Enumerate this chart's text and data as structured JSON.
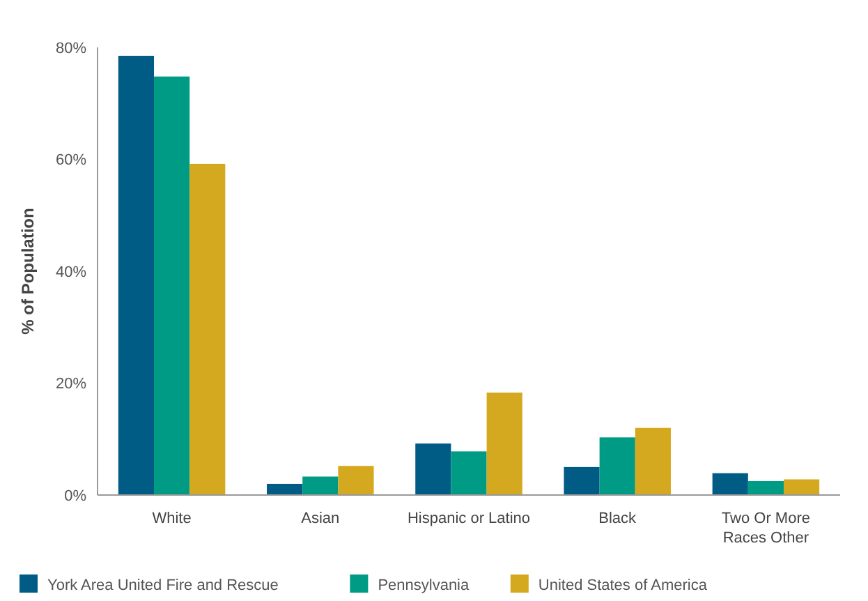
{
  "chart_data": {
    "type": "bar",
    "ylabel": "% of Population",
    "categories": [
      "White",
      "Asian",
      "Hispanic or Latino",
      "Black",
      "Two Or More Races Other"
    ],
    "series": [
      {
        "name": "York Area United Fire and Rescue",
        "color": "#005b85",
        "values": [
          78.5,
          2,
          9.2,
          5,
          3.9
        ]
      },
      {
        "name": "Pennsylvania",
        "color": "#009b84",
        "values": [
          74.8,
          3.3,
          7.8,
          10.3,
          2.5
        ]
      },
      {
        "name": "United States of America",
        "color": "#d4a91f",
        "values": [
          59.2,
          5.2,
          18.3,
          12,
          2.8
        ]
      }
    ],
    "ylim": [
      0,
      80
    ],
    "yticks": [
      {
        "value": 0,
        "label": "0%"
      },
      {
        "value": 20,
        "label": "20%"
      },
      {
        "value": 40,
        "label": "40%"
      },
      {
        "value": 60,
        "label": "60%"
      },
      {
        "value": 80,
        "label": "80%"
      }
    ],
    "grid": false,
    "legend": "bottom"
  }
}
